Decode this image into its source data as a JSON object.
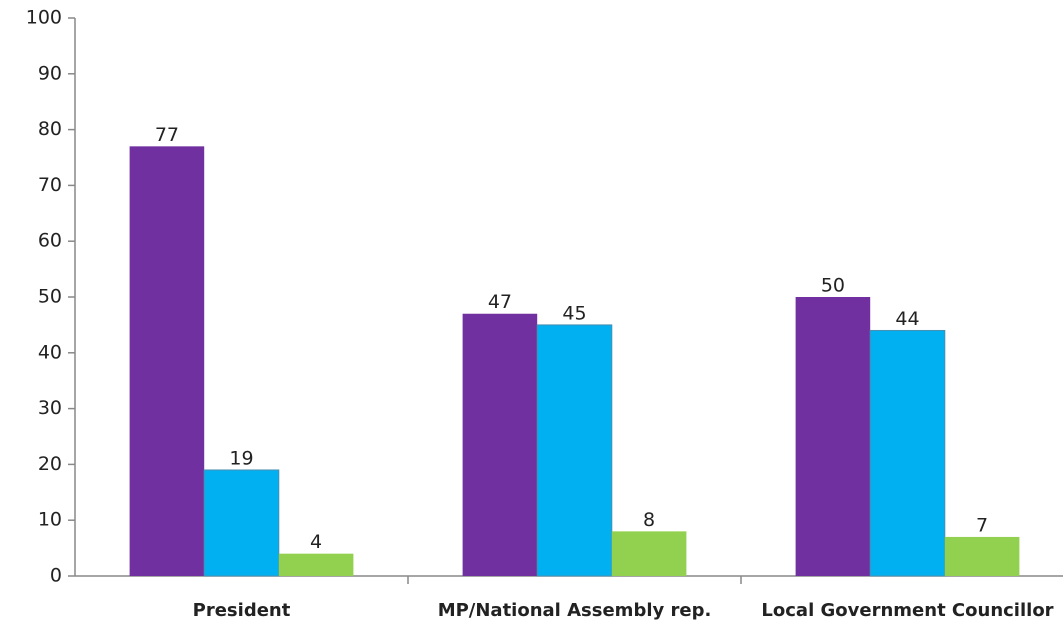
{
  "chart_data": {
    "type": "bar",
    "categories": [
      "President",
      "MP/National Assembly rep.",
      "Local Government Councillor"
    ],
    "series": [
      {
        "color": "#7030a0",
        "values": [
          77,
          47,
          50
        ]
      },
      {
        "color": "#00b0f0",
        "values": [
          19,
          45,
          44
        ]
      },
      {
        "color": "#92d050",
        "values": [
          4,
          8,
          7
        ]
      }
    ],
    "ylim": [
      0,
      100
    ],
    "yticks": [
      0,
      10,
      20,
      30,
      40,
      50,
      60,
      70,
      80,
      90,
      100
    ],
    "grid": false
  }
}
